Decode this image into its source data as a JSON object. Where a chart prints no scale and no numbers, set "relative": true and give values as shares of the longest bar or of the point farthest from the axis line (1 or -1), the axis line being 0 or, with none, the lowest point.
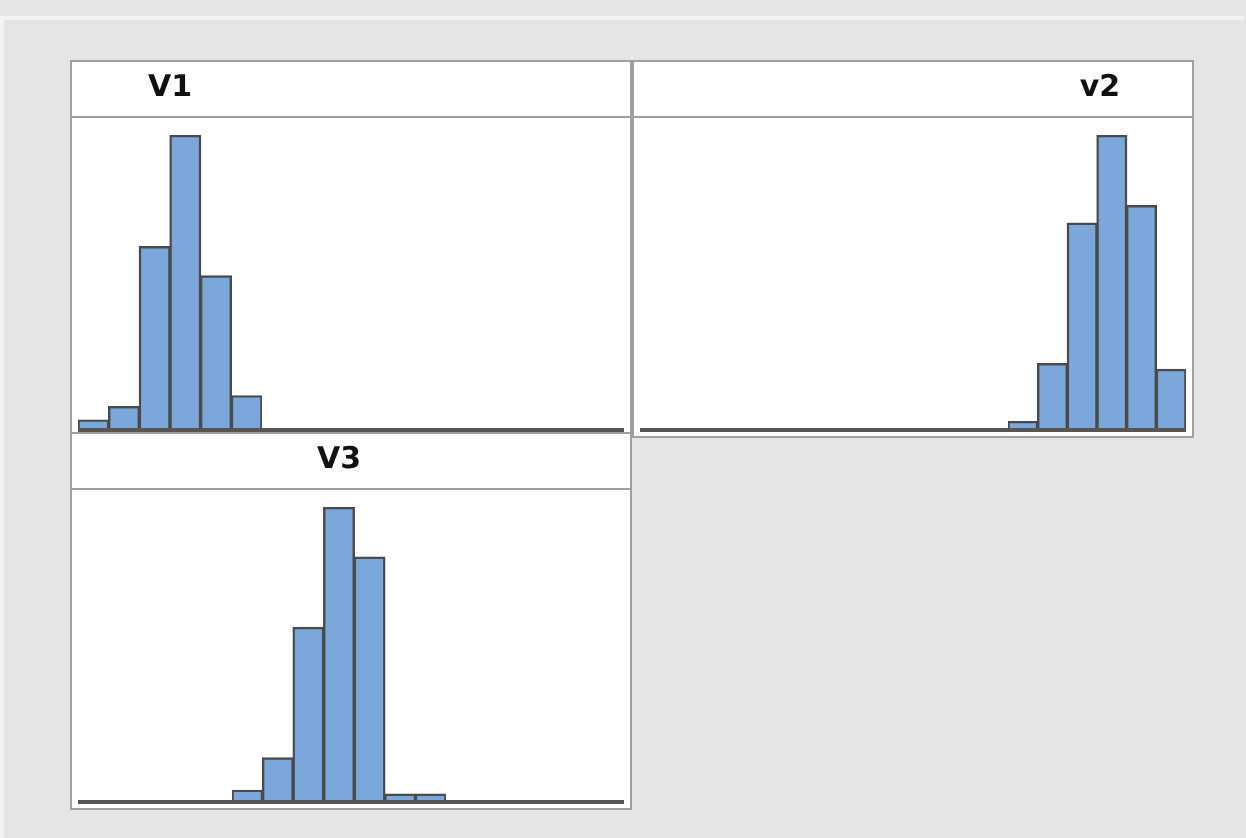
{
  "chart_data": [
    {
      "type": "bar",
      "title": "V1",
      "relative": true,
      "color": "#7ba7db",
      "categories": [
        null,
        null,
        null,
        null,
        null,
        null
      ],
      "values": [
        0.027,
        0.073,
        0.62,
        1,
        0.52,
        0.11
      ]
    },
    {
      "type": "bar",
      "title": "v2",
      "relative": true,
      "color": "#7ba7db",
      "categories": [
        null,
        null,
        null,
        null,
        null,
        null
      ],
      "values": [
        0.022,
        0.22,
        0.7,
        1,
        0.76,
        0.2
      ]
    },
    {
      "type": "bar",
      "title": "V3",
      "relative": true,
      "color": "#7ba7db",
      "categories": [
        null,
        null,
        null,
        null,
        null,
        null,
        null
      ],
      "values": [
        0.033,
        0.144,
        0.59,
        1,
        0.83,
        0.02,
        0.02
      ]
    }
  ]
}
